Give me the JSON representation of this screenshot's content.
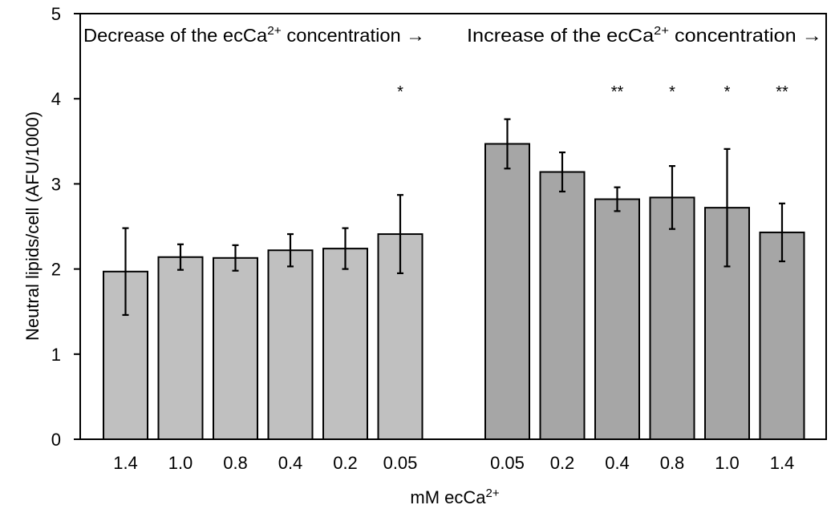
{
  "chart_data": {
    "type": "bar",
    "title": "",
    "ylabel": "Neutral lipids/cell (AFU/1000)",
    "xlabel_prefix": "mM ecCa",
    "xlabel_superscript": "2+",
    "ylim": [
      0,
      5
    ],
    "yticks": [
      "0",
      "1",
      "2",
      "3",
      "4",
      "5"
    ],
    "grid": false,
    "annotations": {
      "decrease": {
        "prefix": "Decrease of the ecCa",
        "superscript": "2+",
        "suffix": " concentration →"
      },
      "increase": {
        "prefix": "Increase of the ecCa",
        "superscript": "2+",
        "suffix": " concentration →"
      }
    },
    "groups": [
      {
        "color": "#c0c0c0",
        "bars": [
          {
            "category": "1.4",
            "value": 1.97,
            "error": 0.51,
            "significance": ""
          },
          {
            "category": "1.0",
            "value": 2.14,
            "error": 0.15,
            "significance": ""
          },
          {
            "category": "0.8",
            "value": 2.13,
            "error": 0.15,
            "significance": ""
          },
          {
            "category": "0.4",
            "value": 2.22,
            "error": 0.19,
            "significance": ""
          },
          {
            "category": "0.2",
            "value": 2.24,
            "error": 0.24,
            "significance": ""
          },
          {
            "category": "0.05",
            "value": 2.41,
            "error": 0.46,
            "significance": "*"
          }
        ]
      },
      {
        "color": "#a6a6a6",
        "bars": [
          {
            "category": "0.05",
            "value": 3.47,
            "error": 0.29,
            "significance": ""
          },
          {
            "category": "0.2",
            "value": 3.14,
            "error": 0.23,
            "significance": ""
          },
          {
            "category": "0.4",
            "value": 2.82,
            "error": 0.14,
            "significance": "**"
          },
          {
            "category": "0.8",
            "value": 2.84,
            "error": 0.37,
            "significance": "*"
          },
          {
            "category": "1.0",
            "value": 2.72,
            "error": 0.69,
            "significance": "*"
          },
          {
            "category": "1.4",
            "value": 2.43,
            "error": 0.34,
            "significance": "**"
          }
        ]
      }
    ]
  }
}
